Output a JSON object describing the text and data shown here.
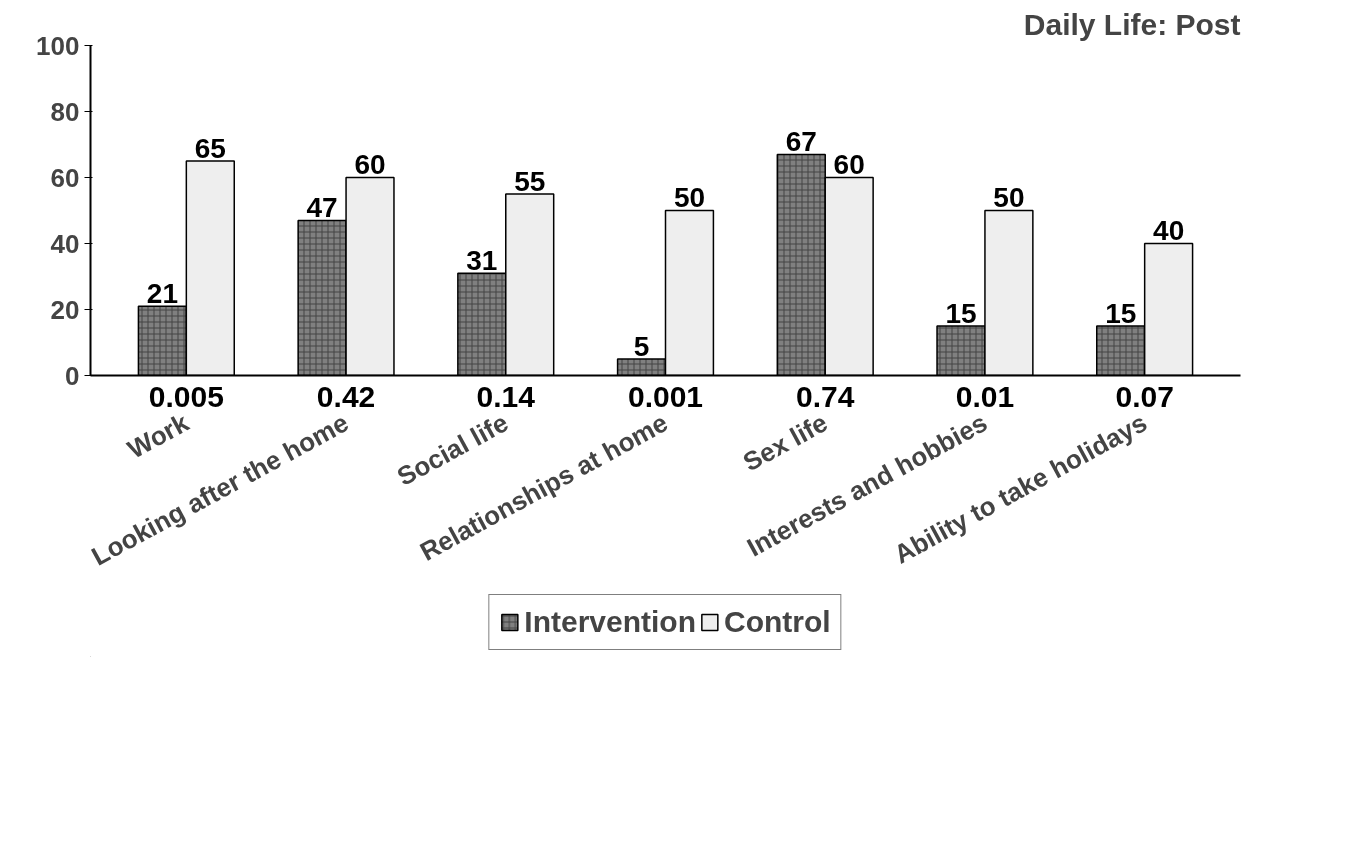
{
  "chart_data": {
    "type": "bar",
    "title": "Daily Life: Post",
    "categories": [
      "Work",
      "Looking after the home",
      "Social life",
      "Relationships at home",
      "Sex life",
      "Interests and hobbies",
      "Ability to take holidays"
    ],
    "series": [
      {
        "name": "Intervention",
        "color": "#808080",
        "values": [
          21,
          47,
          31,
          5,
          67,
          15,
          15
        ]
      },
      {
        "name": "Control",
        "color": "#eeeeee",
        "values": [
          65,
          60,
          55,
          50,
          60,
          50,
          40
        ]
      }
    ],
    "ylim": [
      0,
      100
    ],
    "yticks": [
      0,
      20,
      40,
      60,
      80,
      100
    ],
    "grid": false,
    "legend": "bottom",
    "data_labels": true,
    "annotations": [
      "0.005",
      "0.42",
      "0.14",
      "0.001",
      "0.74",
      "0.01",
      "0.07"
    ]
  }
}
